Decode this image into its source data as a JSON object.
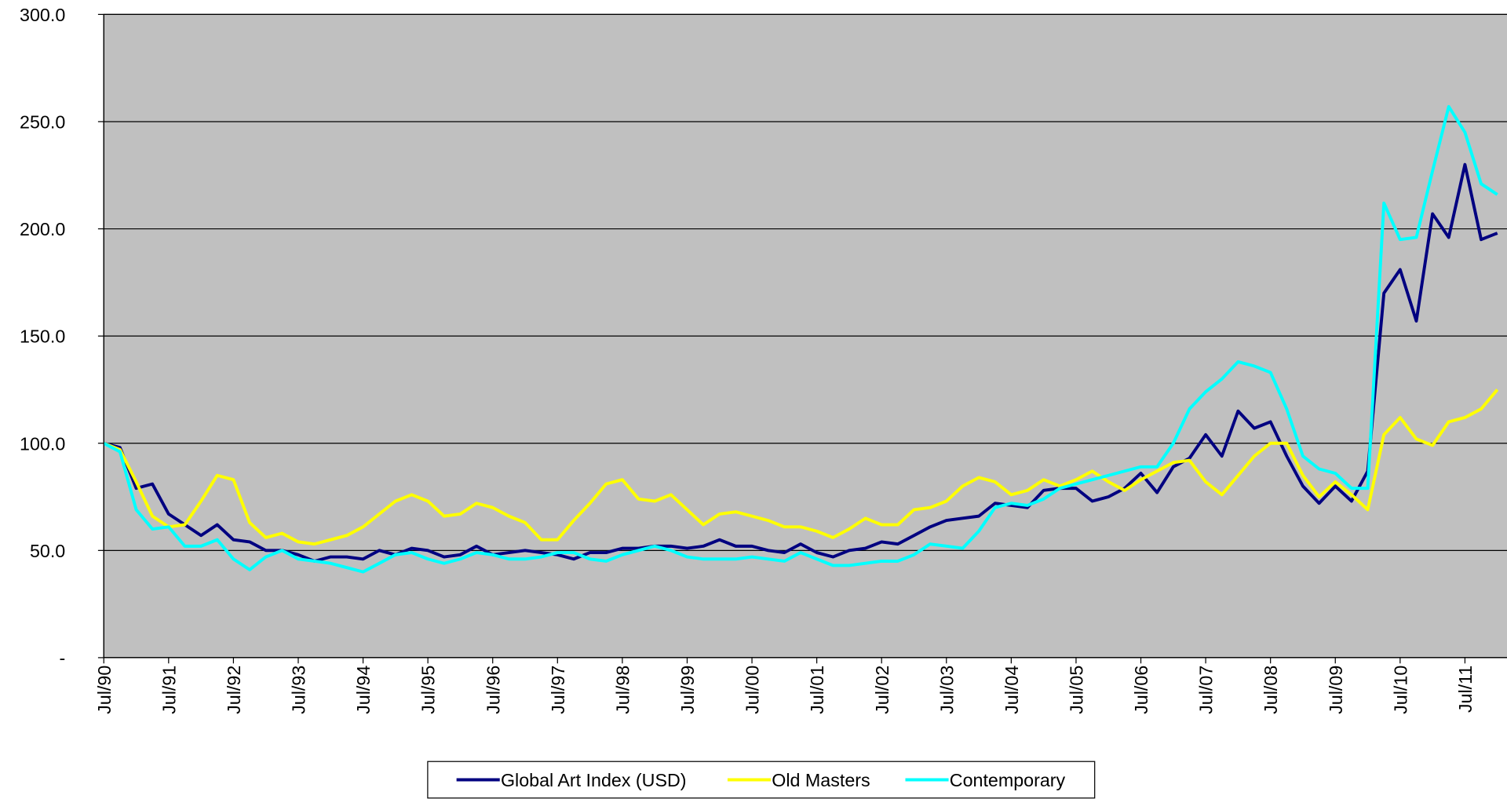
{
  "chart_data": {
    "type": "line",
    "categories": [
      "Jul/90",
      null,
      null,
      null,
      "Jul/91",
      null,
      null,
      null,
      "Jul/92",
      null,
      null,
      null,
      "Jul/93",
      null,
      null,
      null,
      "Jul/94",
      null,
      null,
      null,
      "Jul/95",
      null,
      null,
      null,
      "Jul/96",
      null,
      null,
      null,
      "Jul/97",
      null,
      null,
      null,
      "Jul/98",
      null,
      null,
      null,
      "Jul/99",
      null,
      null,
      null,
      "Jul/00",
      null,
      null,
      null,
      "Jul/01",
      null,
      null,
      null,
      "Jul/02",
      null,
      null,
      null,
      "Jul/03",
      null,
      null,
      null,
      "Jul/04",
      null,
      null,
      null,
      "Jul/05",
      null,
      null,
      null,
      "Jul/06",
      null,
      null,
      null,
      "Jul/07",
      null,
      null,
      null,
      "Jul/08",
      null,
      null,
      null,
      "Jul/09",
      null,
      null,
      null,
      "Jul/10",
      null,
      null,
      null,
      "Jul/11",
      null,
      null
    ],
    "series": [
      {
        "name": "Global Art Index (USD)",
        "color": "#000080",
        "values": [
          100,
          98,
          79,
          81,
          67,
          62,
          57,
          62,
          55,
          54,
          50,
          50,
          48,
          45,
          47,
          47,
          46,
          50,
          48,
          51,
          50,
          47,
          48,
          52,
          48,
          49,
          50,
          49,
          48,
          46,
          49,
          49,
          51,
          51,
          52,
          52,
          51,
          52,
          55,
          52,
          52,
          50,
          49,
          53,
          49,
          47,
          50,
          51,
          54,
          53,
          57,
          61,
          64,
          65,
          66,
          72,
          71,
          70,
          78,
          79,
          79,
          73,
          75,
          79,
          86,
          77,
          89,
          93,
          104,
          94,
          115,
          107,
          110,
          94,
          80,
          72,
          80,
          73,
          87,
          170,
          181,
          157,
          207,
          196,
          230,
          195,
          198
        ]
      },
      {
        "name": "Old Masters",
        "color": "#ffff00",
        "values": [
          100,
          97,
          82,
          66,
          61,
          62,
          73,
          85,
          83,
          63,
          56,
          58,
          54,
          53,
          55,
          57,
          61,
          67,
          73,
          76,
          73,
          66,
          67,
          72,
          70,
          66,
          63,
          55,
          55,
          64,
          72,
          81,
          83,
          74,
          73,
          76,
          69,
          62,
          67,
          68,
          66,
          64,
          61,
          61,
          59,
          56,
          60,
          65,
          62,
          62,
          69,
          70,
          73,
          80,
          84,
          82,
          76,
          78,
          83,
          80,
          83,
          87,
          82,
          78,
          83,
          87,
          91,
          92,
          82,
          76,
          85,
          94,
          100,
          100,
          85,
          75,
          82,
          76,
          69,
          104,
          112,
          102,
          99,
          110,
          112,
          116,
          125
        ]
      },
      {
        "name": "Contemporary",
        "color": "#00ffff",
        "values": [
          100,
          96,
          69,
          60,
          61,
          52,
          52,
          55,
          46,
          41,
          47,
          50,
          46,
          45,
          44,
          42,
          40,
          44,
          48,
          49,
          46,
          44,
          46,
          49,
          48,
          46,
          46,
          47,
          49,
          49,
          46,
          45,
          48,
          50,
          52,
          50,
          47,
          46,
          46,
          46,
          47,
          46,
          45,
          49,
          46,
          43,
          43,
          44,
          45,
          45,
          48,
          53,
          52,
          51,
          59,
          70,
          72,
          71,
          74,
          79,
          81,
          83,
          85,
          87,
          89,
          89,
          100,
          116,
          124,
          130,
          138,
          136,
          133,
          116,
          94,
          88,
          86,
          79,
          79,
          212,
          195,
          196,
          227,
          257,
          245,
          221,
          216
        ]
      }
    ],
    "ylim": [
      0,
      300
    ],
    "yticks": [
      {
        "value": 0,
        "label": "-"
      },
      {
        "value": 50,
        "label": "50.0"
      },
      {
        "value": 100,
        "label": "100.0"
      },
      {
        "value": 150,
        "label": "150.0"
      },
      {
        "value": 200,
        "label": "200.0"
      },
      {
        "value": 250,
        "label": "250.0"
      },
      {
        "value": 300,
        "label": "300.0"
      }
    ],
    "grid": true,
    "plot_background": "#c0c0c0",
    "legend": "bottom"
  }
}
